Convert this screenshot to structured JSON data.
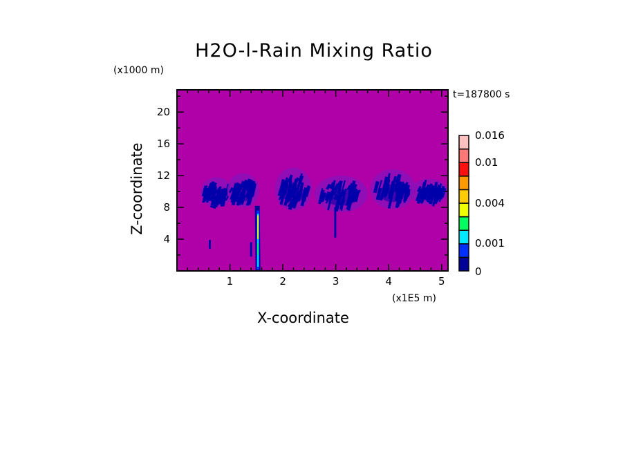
{
  "chart_data": {
    "type": "heatmap",
    "title": "H2O-l-Rain Mixing Ratio",
    "xlabel": "X-coordinate",
    "ylabel": "Z-coordinate",
    "x_unit": "(x1E5 m)",
    "y_unit": "(x1000 m)",
    "time_label": "t=187800 s",
    "xlim": [
      0,
      5.12
    ],
    "ylim": [
      0,
      22.8
    ],
    "x_ticks": [
      1,
      2,
      3,
      4,
      5
    ],
    "x_tick_labels": [
      "1",
      "2",
      "3",
      "4",
      "5"
    ],
    "y_ticks": [
      4,
      8,
      12,
      16,
      20
    ],
    "y_tick_labels": [
      "4",
      "8",
      "12",
      "16",
      "20"
    ],
    "background_value": 0,
    "colorbar": {
      "levels": [
        0,
        0.0005,
        0.001,
        0.002,
        0.003,
        0.004,
        0.006,
        0.008,
        0.01,
        0.012,
        0.016
      ],
      "colors": [
        "#000099",
        "#0030ff",
        "#00e8ff",
        "#00ff60",
        "#eeff00",
        "#ffcc00",
        "#ff9900",
        "#ff1010",
        "#ff7878",
        "#ffc0c0"
      ],
      "labels": [
        {
          "value": 0.016,
          "text": "0.016"
        },
        {
          "value": 0.01,
          "text": "0.01"
        },
        {
          "value": 0.004,
          "text": "0.004"
        },
        {
          "value": 0.001,
          "text": "0.001"
        },
        {
          "value": 0,
          "text": "0"
        }
      ]
    },
    "colors": {
      "background": "#b000a8",
      "cloud_edge": "#8a10b8",
      "cloud_core": "#0000aa"
    },
    "features": [
      {
        "name": "cloud-cluster-1",
        "x": [
          0.45,
          1.05
        ],
        "z": [
          8.0,
          11.8
        ]
      },
      {
        "name": "cloud-cluster-2",
        "x": [
          0.95,
          1.55
        ],
        "z": [
          8.0,
          12.3
        ]
      },
      {
        "name": "cloud-cluster-3",
        "x": [
          1.85,
          2.55
        ],
        "z": [
          7.6,
          13.0
        ]
      },
      {
        "name": "cloud-cluster-4",
        "x": [
          2.6,
          3.6
        ],
        "z": [
          7.4,
          12.0
        ]
      },
      {
        "name": "cloud-cluster-5",
        "x": [
          3.65,
          4.5
        ],
        "z": [
          7.8,
          12.8
        ]
      },
      {
        "name": "cloud-cluster-6",
        "x": [
          4.4,
          5.12
        ],
        "z": [
          8.3,
          11.6
        ]
      }
    ],
    "rain_shaft": {
      "x": 1.53,
      "z": [
        0,
        8.2
      ],
      "max_value": 0.005
    },
    "small_features": [
      {
        "x": 0.62,
        "z": [
          2.8,
          3.9
        ]
      },
      {
        "x": 1.4,
        "z": [
          1.8,
          3.6
        ]
      },
      {
        "x": 2.99,
        "z": [
          4.2,
          8.0
        ]
      }
    ]
  }
}
